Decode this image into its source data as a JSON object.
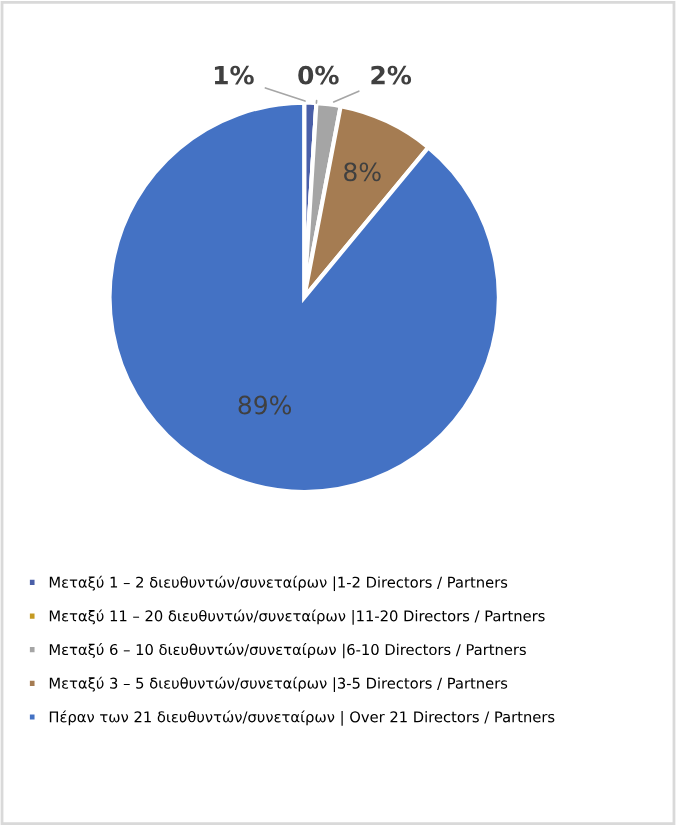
{
  "chart_data": {
    "type": "pie",
    "categories": [
      "Μεταξύ 1 – 2 διευθυντών/συνεταίρων |1-2 Directors / Partners",
      "Μεταξύ 11 – 20 διευθυντών/συνεταίρων |11-20 Directors / Partners",
      "Μεταξύ 6 – 10 διευθυντών/συνεταίρων |6-10 Directors / Partners",
      "Μεταξύ 3 – 5 διευθυντών/συνεταίρων |3-5 Directors / Partners",
      "Πέραν των 21 διευθυντών/συνεταίρων | Over 21 Directors / Partners"
    ],
    "values": [
      1,
      0,
      2,
      8,
      89
    ],
    "colors": [
      "#4a5fa8",
      "#c59a22",
      "#a5a5a5",
      "#a57c52",
      "#4472c4"
    ],
    "value_labels": [
      "1%",
      "0%",
      "2%",
      "8%",
      "89%"
    ],
    "legend": "bottom"
  }
}
